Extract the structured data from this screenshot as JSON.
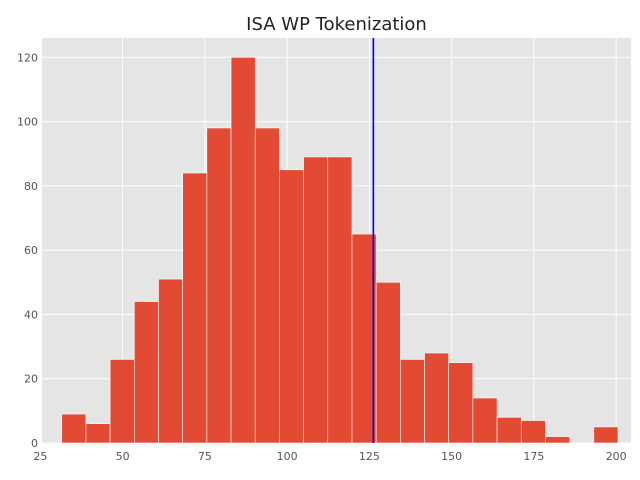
{
  "chart_data": {
    "type": "bar",
    "title": "ISA WP Tokenization",
    "xlabel": "",
    "ylabel": "",
    "xlim": [
      25.5,
      204.5
    ],
    "ylim": [
      0,
      126
    ],
    "grid": true,
    "bin_width": 7.35,
    "bins": [
      {
        "start": 31.5,
        "count": 9
      },
      {
        "start": 38.85,
        "count": 6
      },
      {
        "start": 46.2,
        "count": 26
      },
      {
        "start": 53.55,
        "count": 44
      },
      {
        "start": 60.9,
        "count": 51
      },
      {
        "start": 68.25,
        "count": 84
      },
      {
        "start": 75.6,
        "count": 98
      },
      {
        "start": 82.95,
        "count": 120
      },
      {
        "start": 90.3,
        "count": 98
      },
      {
        "start": 97.65,
        "count": 85
      },
      {
        "start": 105.0,
        "count": 89
      },
      {
        "start": 112.35,
        "count": 89
      },
      {
        "start": 119.7,
        "count": 65
      },
      {
        "start": 127.05,
        "count": 50
      },
      {
        "start": 134.4,
        "count": 26
      },
      {
        "start": 141.75,
        "count": 28
      },
      {
        "start": 149.1,
        "count": 25
      },
      {
        "start": 156.45,
        "count": 14
      },
      {
        "start": 163.8,
        "count": 8
      },
      {
        "start": 171.15,
        "count": 7
      },
      {
        "start": 178.5,
        "count": 2
      },
      {
        "start": 185.85,
        "count": 0
      },
      {
        "start": 193.2,
        "count": 5
      }
    ],
    "vline": {
      "x": 126.2,
      "color": "#0000ff"
    },
    "x_ticks": [
      25,
      50,
      75,
      100,
      125,
      150,
      175,
      200
    ],
    "y_ticks": [
      0,
      20,
      40,
      60,
      80,
      100,
      120
    ],
    "colors": {
      "bar": "#e24a33",
      "background": "#e5e5e5",
      "grid": "#ffffff"
    }
  }
}
